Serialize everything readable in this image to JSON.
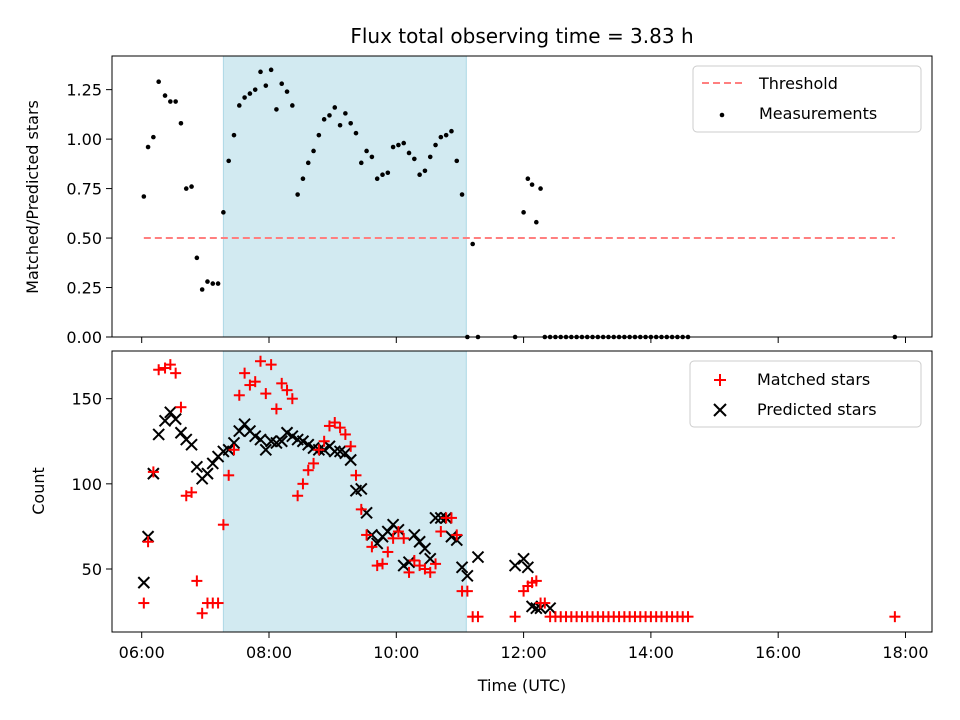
{
  "title": "Flux total observing time = 3.83 h",
  "colors": {
    "threshold": "#ff7f7f",
    "measurement": "#000000",
    "matched": "#ff0000",
    "predicted": "#000000",
    "span": "#add8e6"
  },
  "chart_data": [
    {
      "type": "scatter",
      "panel": "top",
      "ylabel": "Matched/Predicted stars",
      "ylim": [
        0,
        1.42
      ],
      "xlim": [
        "05:32",
        "18:25"
      ],
      "yticks": [
        "0.00",
        "0.25",
        "0.50",
        "0.75",
        "1.00",
        "1.25"
      ],
      "yticks_values": [
        0,
        0.25,
        0.5,
        0.75,
        1.0,
        1.25
      ],
      "highlight_span": [
        "07:17",
        "11:06"
      ],
      "legend": {
        "placement": "top-right",
        "threshold_label": "Threshold",
        "measurements_label": "Measurements"
      },
      "threshold": {
        "name": "Threshold",
        "y": 0.5,
        "x_range": [
          "06:02",
          "17:50"
        ]
      },
      "series": [
        {
          "name": "Measurements",
          "x": [
            "06:02",
            "06:06",
            "06:11",
            "06:16",
            "06:22",
            "06:27",
            "06:32",
            "06:37",
            "06:42",
            "06:47",
            "06:52",
            "06:57",
            "07:02",
            "07:07",
            "07:12",
            "07:17",
            "07:22",
            "07:27",
            "07:32",
            "07:37",
            "07:42",
            "07:47",
            "07:52",
            "07:57",
            "08:02",
            "08:07",
            "08:12",
            "08:17",
            "08:22",
            "08:27",
            "08:32",
            "08:37",
            "08:42",
            "08:47",
            "08:52",
            "08:57",
            "09:02",
            "09:07",
            "09:12",
            "09:17",
            "09:22",
            "09:27",
            "09:32",
            "09:37",
            "09:42",
            "09:47",
            "09:52",
            "09:57",
            "10:02",
            "10:07",
            "10:12",
            "10:17",
            "10:22",
            "10:27",
            "10:32",
            "10:37",
            "10:42",
            "10:47",
            "10:52",
            "10:57",
            "11:02",
            "11:07",
            "11:12",
            "11:17",
            "11:52",
            "12:00",
            "12:04",
            "12:08",
            "12:12",
            "12:16",
            "12:20",
            "12:25",
            "12:30",
            "12:35",
            "12:40",
            "12:45",
            "12:50",
            "12:55",
            "13:00",
            "13:05",
            "13:10",
            "13:15",
            "13:20",
            "13:25",
            "13:30",
            "13:35",
            "13:40",
            "13:45",
            "13:50",
            "13:55",
            "14:00",
            "14:05",
            "14:10",
            "14:15",
            "14:20",
            "14:25",
            "14:30",
            "14:35",
            "17:50"
          ],
          "values": [
            0.71,
            0.96,
            1.01,
            1.29,
            1.22,
            1.19,
            1.19,
            1.08,
            0.75,
            0.76,
            0.4,
            0.24,
            0.28,
            0.27,
            0.27,
            0.63,
            0.89,
            1.02,
            1.17,
            1.21,
            1.23,
            1.25,
            1.34,
            1.27,
            1.35,
            1.15,
            1.28,
            1.24,
            1.17,
            0.72,
            0.8,
            0.88,
            0.94,
            1.02,
            1.1,
            1.12,
            1.16,
            1.07,
            1.13,
            1.08,
            1.03,
            0.88,
            0.94,
            0.91,
            0.8,
            0.82,
            0.83,
            0.96,
            0.97,
            0.98,
            0.93,
            0.9,
            0.82,
            0.84,
            0.91,
            0.97,
            1.01,
            1.02,
            1.04,
            0.89,
            0.72,
            0.0,
            0.47,
            0.0,
            0.0,
            0.63,
            0.8,
            0.77,
            0.58,
            0.75,
            0.0,
            0.0,
            0.0,
            0.0,
            0.0,
            0.0,
            0.0,
            0.0,
            0.0,
            0.0,
            0.0,
            0.0,
            0.0,
            0.0,
            0.0,
            0.0,
            0.0,
            0.0,
            0.0,
            0.0,
            0.0,
            0.0,
            0.0,
            0.0,
            0.0,
            0.0,
            0.0,
            0.0,
            0.0
          ]
        }
      ]
    },
    {
      "type": "scatter",
      "panel": "bottom",
      "xlabel": "Time (UTC)",
      "ylabel": "Count",
      "ylim": [
        13,
        178
      ],
      "xlim": [
        "05:32",
        "18:25"
      ],
      "yticks": [
        "50",
        "100",
        "150"
      ],
      "yticks_values": [
        50,
        100,
        150
      ],
      "xticks": [
        "06:00",
        "08:00",
        "10:00",
        "12:00",
        "14:00",
        "16:00",
        "18:00"
      ],
      "xticks_values": [
        "06:00",
        "08:00",
        "10:00",
        "12:00",
        "14:00",
        "16:00",
        "18:00"
      ],
      "highlight_span": [
        "07:17",
        "11:06"
      ],
      "legend": {
        "placement": "top-right",
        "matched_label": "Matched stars",
        "predicted_label": "Predicted stars"
      },
      "series": [
        {
          "name": "Matched stars",
          "marker": "plus",
          "x": [
            "06:02",
            "06:06",
            "06:11",
            "06:16",
            "06:22",
            "06:27",
            "06:32",
            "06:37",
            "06:42",
            "06:47",
            "06:52",
            "06:57",
            "07:02",
            "07:07",
            "07:12",
            "07:17",
            "07:22",
            "07:27",
            "07:32",
            "07:37",
            "07:42",
            "07:47",
            "07:52",
            "07:57",
            "08:02",
            "08:07",
            "08:12",
            "08:17",
            "08:22",
            "08:27",
            "08:32",
            "08:37",
            "08:42",
            "08:47",
            "08:52",
            "08:57",
            "09:02",
            "09:07",
            "09:12",
            "09:17",
            "09:22",
            "09:27",
            "09:32",
            "09:37",
            "09:42",
            "09:47",
            "09:52",
            "09:57",
            "10:02",
            "10:07",
            "10:12",
            "10:17",
            "10:22",
            "10:27",
            "10:32",
            "10:37",
            "10:42",
            "10:47",
            "10:52",
            "10:57",
            "11:02",
            "11:07",
            "11:12",
            "11:17",
            "11:52",
            "12:00",
            "12:04",
            "12:08",
            "12:12",
            "12:16",
            "12:20",
            "12:25",
            "12:30",
            "12:35",
            "12:40",
            "12:45",
            "12:50",
            "12:55",
            "13:00",
            "13:05",
            "13:10",
            "13:15",
            "13:20",
            "13:25",
            "13:30",
            "13:35",
            "13:40",
            "13:45",
            "13:50",
            "13:55",
            "14:00",
            "14:05",
            "14:10",
            "14:15",
            "14:20",
            "14:25",
            "14:30",
            "14:35",
            "17:50"
          ],
          "values": [
            30,
            66,
            107,
            167,
            168,
            170,
            165,
            145,
            93,
            95,
            43,
            24,
            30,
            30,
            30,
            76,
            105,
            120,
            152,
            165,
            158,
            160,
            172,
            153,
            170,
            144,
            159,
            155,
            150,
            93,
            100,
            108,
            112,
            120,
            125,
            134,
            136,
            133,
            129,
            122,
            105,
            85,
            70,
            63,
            52,
            53,
            60,
            68,
            72,
            68,
            48,
            55,
            52,
            50,
            48,
            53,
            72,
            80,
            80,
            70,
            37,
            37,
            22,
            22,
            22,
            37,
            40,
            42,
            43,
            30,
            30,
            22,
            22,
            22,
            22,
            22,
            22,
            22,
            22,
            22,
            22,
            22,
            22,
            22,
            22,
            22,
            22,
            22,
            22,
            22,
            22,
            22,
            22,
            22,
            22,
            22,
            22,
            22,
            22
          ]
        },
        {
          "name": "Predicted stars",
          "marker": "x",
          "x": [
            "06:02",
            "06:06",
            "06:11",
            "06:16",
            "06:22",
            "06:27",
            "06:32",
            "06:37",
            "06:42",
            "06:47",
            "06:52",
            "06:57",
            "07:02",
            "07:07",
            "07:12",
            "07:17",
            "07:22",
            "07:27",
            "07:32",
            "07:37",
            "07:42",
            "07:47",
            "07:52",
            "07:57",
            "08:02",
            "08:07",
            "08:12",
            "08:17",
            "08:22",
            "08:27",
            "08:32",
            "08:37",
            "08:42",
            "08:47",
            "08:52",
            "08:57",
            "09:02",
            "09:07",
            "09:12",
            "09:17",
            "09:22",
            "09:27",
            "09:32",
            "09:37",
            "09:42",
            "09:47",
            "09:52",
            "09:57",
            "10:02",
            "10:07",
            "10:12",
            "10:17",
            "10:22",
            "10:27",
            "10:32",
            "10:37",
            "10:42",
            "10:47",
            "10:52",
            "10:57",
            "11:02",
            "11:07",
            "11:17",
            "11:52",
            "12:00",
            "12:04",
            "12:08",
            "12:12",
            "12:16",
            "12:25"
          ],
          "values": [
            42,
            69,
            106,
            129,
            137,
            142,
            138,
            130,
            126,
            123,
            110,
            103,
            106,
            112,
            116,
            119,
            120,
            124,
            131,
            135,
            131,
            128,
            126,
            120,
            125,
            124,
            125,
            130,
            128,
            126,
            125,
            123,
            121,
            120,
            120,
            122,
            119,
            119,
            118,
            114,
            96,
            97,
            83,
            70,
            65,
            69,
            72,
            76,
            73,
            52,
            54,
            70,
            66,
            62,
            56,
            80,
            80,
            80,
            69,
            67,
            51,
            46,
            57,
            52,
            56,
            51,
            28,
            27,
            27,
            27
          ]
        }
      ]
    }
  ]
}
